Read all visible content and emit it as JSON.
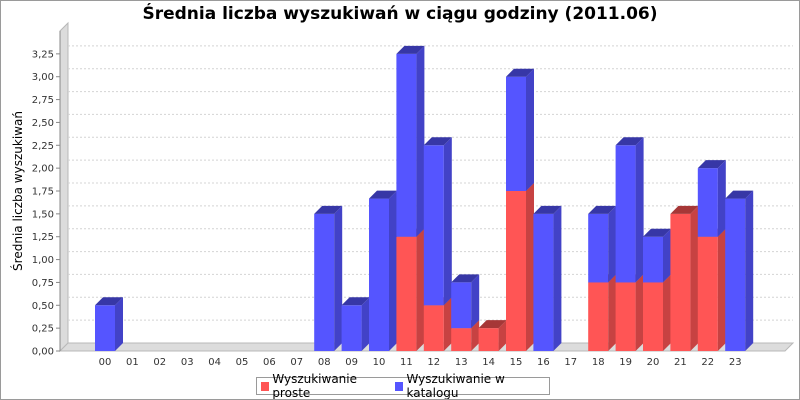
{
  "chart_data": {
    "type": "bar",
    "stacked": true,
    "title": "Średnia liczba wyszukiwań w ciągu godziny (2011.06)",
    "xlabel": "",
    "ylabel": "Średnia liczba wyszukiwań",
    "ylim": [
      0,
      3.5
    ],
    "grid": true,
    "legend_position": "bottom",
    "yticks": [
      "0,00",
      "0,25",
      "0,50",
      "0,75",
      "1,00",
      "1,25",
      "1,50",
      "1,75",
      "2,00",
      "2,25",
      "2,50",
      "2,75",
      "3,00",
      "3,25"
    ],
    "categories": [
      "00",
      "01",
      "02",
      "03",
      "04",
      "05",
      "06",
      "07",
      "08",
      "09",
      "10",
      "11",
      "12",
      "13",
      "14",
      "15",
      "16",
      "17",
      "18",
      "19",
      "20",
      "21",
      "22",
      "23"
    ],
    "series": [
      {
        "name": "Wyszukiwanie proste",
        "color": "#ff5555",
        "values": [
          0,
          0,
          0,
          0,
          0,
          0,
          0,
          0,
          0,
          0,
          0,
          1.25,
          0.5,
          0.25,
          0.25,
          1.75,
          0,
          0,
          0.75,
          0.75,
          0.75,
          1.5,
          1.25,
          0
        ]
      },
      {
        "name": "Wyszukiwanie w katalogu",
        "color": "#5555ff",
        "values": [
          0.5,
          0,
          0,
          0,
          0,
          0,
          0,
          0,
          1.5,
          0.5,
          1.667,
          2.0,
          1.75,
          0.5,
          0,
          1.25,
          1.5,
          0,
          0.75,
          1.5,
          0.5,
          0,
          0.75,
          1.667
        ]
      }
    ]
  }
}
